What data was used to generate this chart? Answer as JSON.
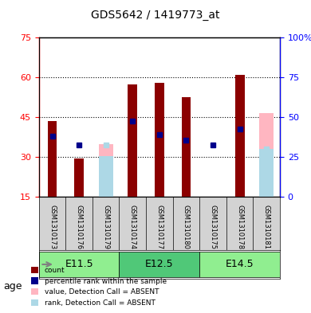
{
  "title": "GDS5642 / 1419773_at",
  "samples": [
    "GSM1310173",
    "GSM1310176",
    "GSM1310179",
    "GSM1310174",
    "GSM1310177",
    "GSM1310180",
    "GSM1310175",
    "GSM1310178",
    "GSM1310181"
  ],
  "count_values": [
    43.5,
    29.5,
    null,
    57.5,
    58.0,
    52.5,
    null,
    61.0,
    null
  ],
  "rank_values": [
    38.0,
    null,
    null,
    43.5,
    38.5,
    36.5,
    null,
    40.5,
    null
  ],
  "absent_value_values": [
    null,
    null,
    35.0,
    null,
    null,
    null,
    null,
    null,
    46.5
  ],
  "absent_rank_values": [
    null,
    null,
    30.5,
    null,
    null,
    null,
    null,
    null,
    33.0
  ],
  "blue_marker_values": [
    38.0,
    34.5,
    null,
    43.5,
    38.5,
    36.5,
    34.5,
    40.5,
    null
  ],
  "blue_absent_marker_values": [
    null,
    null,
    34.5,
    null,
    null,
    null,
    null,
    null,
    33.0
  ],
  "age_groups": [
    {
      "label": "E11.5",
      "start": 0,
      "end": 3,
      "color": "#90EE90"
    },
    {
      "label": "E12.5",
      "start": 3,
      "end": 6,
      "color": "#50C878"
    },
    {
      "label": "E14.5",
      "start": 6,
      "end": 9,
      "color": "#90EE90"
    }
  ],
  "ylim_left": [
    15,
    75
  ],
  "ylim_right": [
    0,
    100
  ],
  "yticks_left": [
    15,
    30,
    45,
    60,
    75
  ],
  "yticks_right": [
    0,
    25,
    50,
    75,
    100
  ],
  "yticklabels_right": [
    "0",
    "25",
    "50",
    "75",
    "100%"
  ],
  "bar_width": 0.35,
  "bar_bottom": 15,
  "count_color": "#8B0000",
  "rank_color": "#8B0000",
  "absent_value_color": "#FFB6C1",
  "absent_rank_color": "#ADD8E6",
  "blue_color": "#00008B",
  "grid_color": "black",
  "background_color": "#d3d3d3",
  "legend_items": [
    {
      "label": "count",
      "color": "#8B0000"
    },
    {
      "label": "percentile rank within the sample",
      "color": "#00008B"
    },
    {
      "label": "value, Detection Call = ABSENT",
      "color": "#FFB6C1"
    },
    {
      "label": "rank, Detection Call = ABSENT",
      "color": "#ADD8E6"
    }
  ]
}
